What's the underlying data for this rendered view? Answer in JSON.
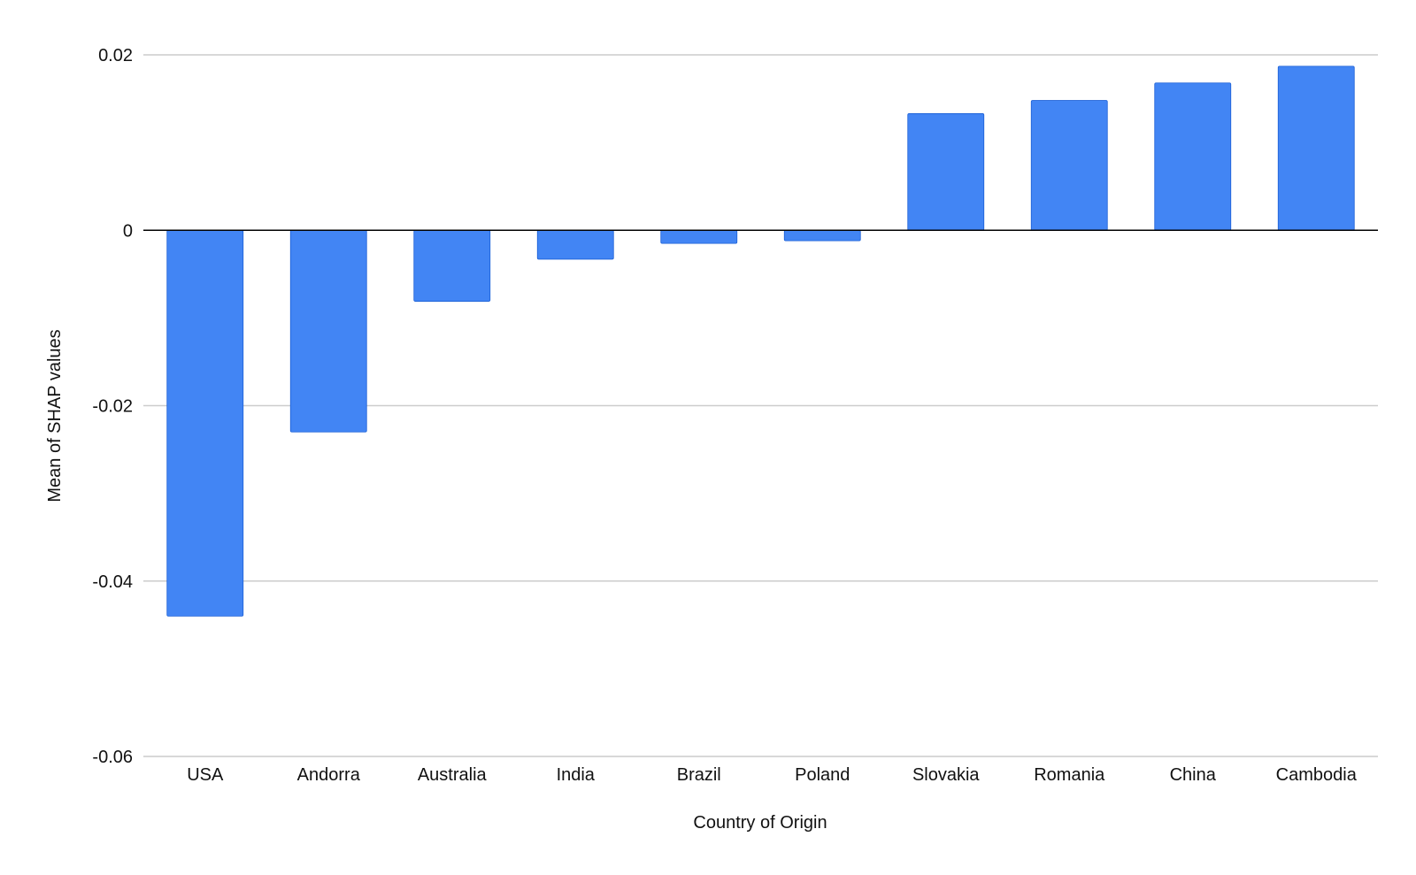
{
  "chart_data": {
    "type": "bar",
    "title": "",
    "xlabel": "Country of Origin",
    "ylabel": "Mean of SHAP values",
    "categories": [
      "USA",
      "Andorra",
      "Australia",
      "India",
      "Brazil",
      "Poland",
      "Slovakia",
      "Romania",
      "China",
      "Cambodia"
    ],
    "series": [
      {
        "values": [
          -0.044,
          -0.023,
          -0.0081,
          -0.0033,
          -0.0015,
          -0.0012,
          0.0133,
          0.0148,
          0.0168,
          0.0187
        ]
      }
    ],
    "ylim": [
      -0.06,
      0.02
    ],
    "yticks": [
      0.02,
      0,
      -0.02,
      -0.04,
      -0.06
    ],
    "ytick_labels": [
      "0.02",
      "0",
      "-0.02",
      "-0.04",
      "-0.06"
    ],
    "grid": true,
    "bar_color": "#4285f4",
    "zero_line_color": "#000000",
    "grid_color": "#cccccc"
  }
}
